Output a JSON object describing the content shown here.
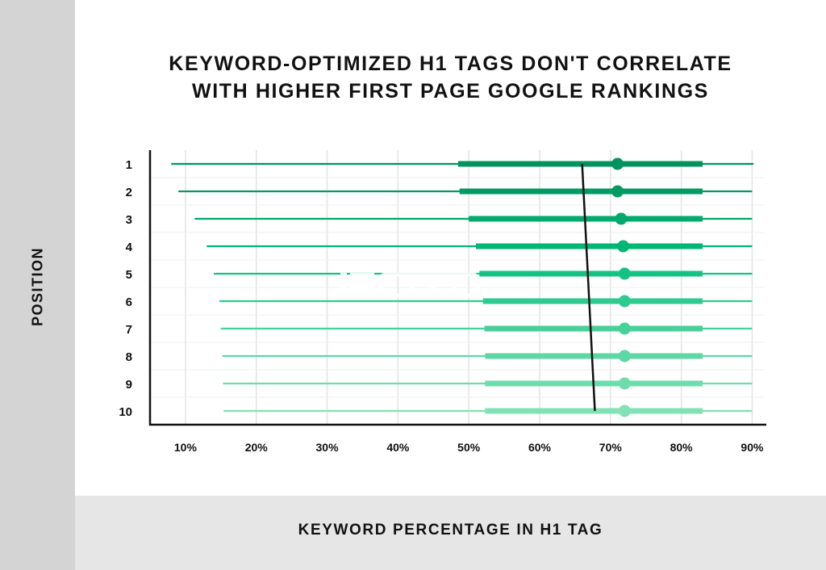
{
  "chart_data": {
    "type": "box-range",
    "title": "KEYWORD-OPTIMIZED H1 TAGS DON'T CORRELATE WITH HIGHER FIRST PAGE GOOGLE RANKINGS",
    "xlabel": "KEYWORD PERCENTAGE IN H1 TAG",
    "ylabel": "POSITION",
    "xlim": [
      5,
      92
    ],
    "x_ticks": [
      "10%",
      "20%",
      "30%",
      "40%",
      "50%",
      "60%",
      "70%",
      "80%",
      "90%"
    ],
    "grid": true,
    "rows": [
      {
        "position": "1",
        "min": 8.0,
        "q1": 48.5,
        "median": 71.0,
        "q3": 83.0,
        "max": 90.2
      },
      {
        "position": "2",
        "min": 9.0,
        "q1": 48.7,
        "median": 71.0,
        "q3": 83.0,
        "max": 90.0
      },
      {
        "position": "3",
        "min": 11.3,
        "q1": 50.0,
        "median": 71.5,
        "q3": 83.0,
        "max": 90.0
      },
      {
        "position": "4",
        "min": 13.0,
        "q1": 51.0,
        "median": 71.8,
        "q3": 83.0,
        "max": 90.0
      },
      {
        "position": "5",
        "min": 14.0,
        "q1": 51.5,
        "median": 72.0,
        "q3": 83.0,
        "max": 90.0
      },
      {
        "position": "6",
        "min": 14.8,
        "q1": 52.0,
        "median": 72.0,
        "q3": 83.0,
        "max": 90.0
      },
      {
        "position": "7",
        "min": 15.0,
        "q1": 52.2,
        "median": 72.0,
        "q3": 83.0,
        "max": 90.0
      },
      {
        "position": "8",
        "min": 15.2,
        "q1": 52.3,
        "median": 72.0,
        "q3": 83.0,
        "max": 90.0
      },
      {
        "position": "9",
        "min": 15.3,
        "q1": 52.3,
        "median": 72.0,
        "q3": 83.0,
        "max": 90.0
      },
      {
        "position": "10",
        "min": 15.4,
        "q1": 52.3,
        "median": 72.0,
        "q3": 83.0,
        "max": 90.0
      }
    ],
    "trend_line": {
      "from": {
        "x": 66.0,
        "position": 1
      },
      "to": {
        "x": 67.8,
        "position": 10
      }
    },
    "colors": [
      "#00935f",
      "#009a64",
      "#00a96c",
      "#00b674",
      "#14c384",
      "#2ecb8f",
      "#46d199",
      "#5dd7a3",
      "#6fdcab",
      "#82e1b5"
    ]
  },
  "logo_text": "BACKLINKO"
}
